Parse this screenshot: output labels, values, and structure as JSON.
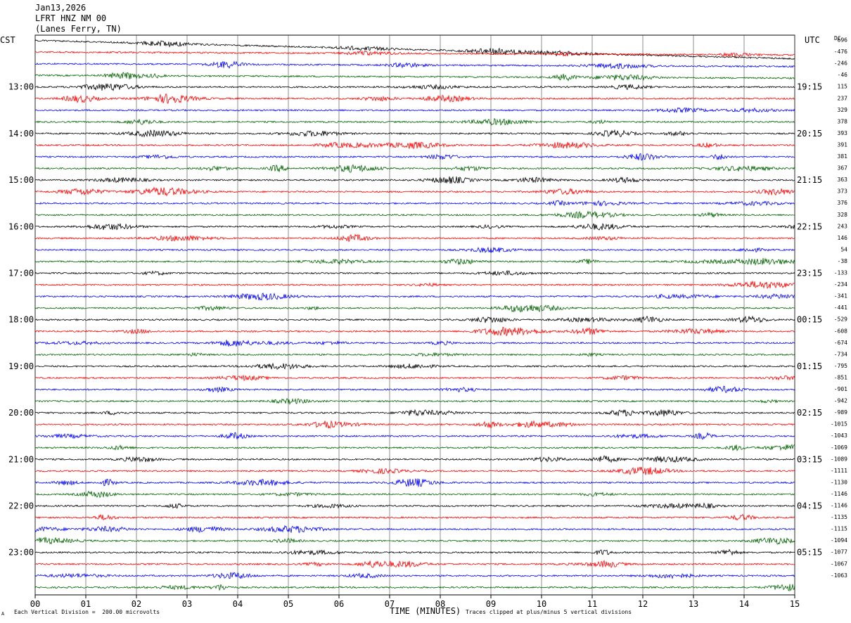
{
  "header": {
    "date": "Jan13,2026",
    "channel": "LFRT HNZ NM 00",
    "location": "(Lanes Ferry, TN)"
  },
  "left_timezone": "CST",
  "right_timezone": "UTC",
  "dc_header": "DC",
  "footer": {
    "scale_text": "Each Vertical Division =  200.00 microvolts",
    "corner_mark": "A",
    "xlabel": "TIME (MINUTES)",
    "clip_text": "Traces clipped at plus/minus 5 vertical divisions"
  },
  "colors": {
    "trace_cycle": [
      "#000000",
      "#ff0000",
      "#0000ff",
      "#006400"
    ],
    "grid": "#000000"
  },
  "chart_data": {
    "type": "line",
    "title": "",
    "xlabel": "TIME (MINUTES)",
    "xlim": [
      0,
      15
    ],
    "x_ticks": [
      "00",
      "01",
      "02",
      "03",
      "04",
      "05",
      "06",
      "07",
      "08",
      "09",
      "10",
      "11",
      "12",
      "13",
      "14",
      "15"
    ],
    "trace_count": 48,
    "trace_minutes": 15,
    "grid": true,
    "left_hour_labels": [
      "13:00",
      "14:00",
      "15:00",
      "16:00",
      "17:00",
      "18:00",
      "19:00",
      "20:00",
      "21:00",
      "22:00",
      "23:00"
    ],
    "right_hour_labels": [
      "19:15",
      "20:15",
      "21:15",
      "22:15",
      "23:15",
      "00:15",
      "01:15",
      "02:15",
      "03:15",
      "04:15",
      "05:15"
    ],
    "dc_offsets": [
      696,
      -476,
      -246,
      -46,
      115,
      237,
      329,
      378,
      393,
      391,
      381,
      367,
      363,
      373,
      376,
      328,
      243,
      146,
      54,
      -38,
      -133,
      -234,
      -341,
      -441,
      -529,
      -608,
      -674,
      -734,
      -795,
      -851,
      -901,
      -942,
      -989,
      -1015,
      -1043,
      -1069,
      -1089,
      -1111,
      -1130,
      -1146,
      -1146,
      -1135,
      -1115,
      -1094,
      -1077,
      -1067,
      -1063
    ]
  }
}
